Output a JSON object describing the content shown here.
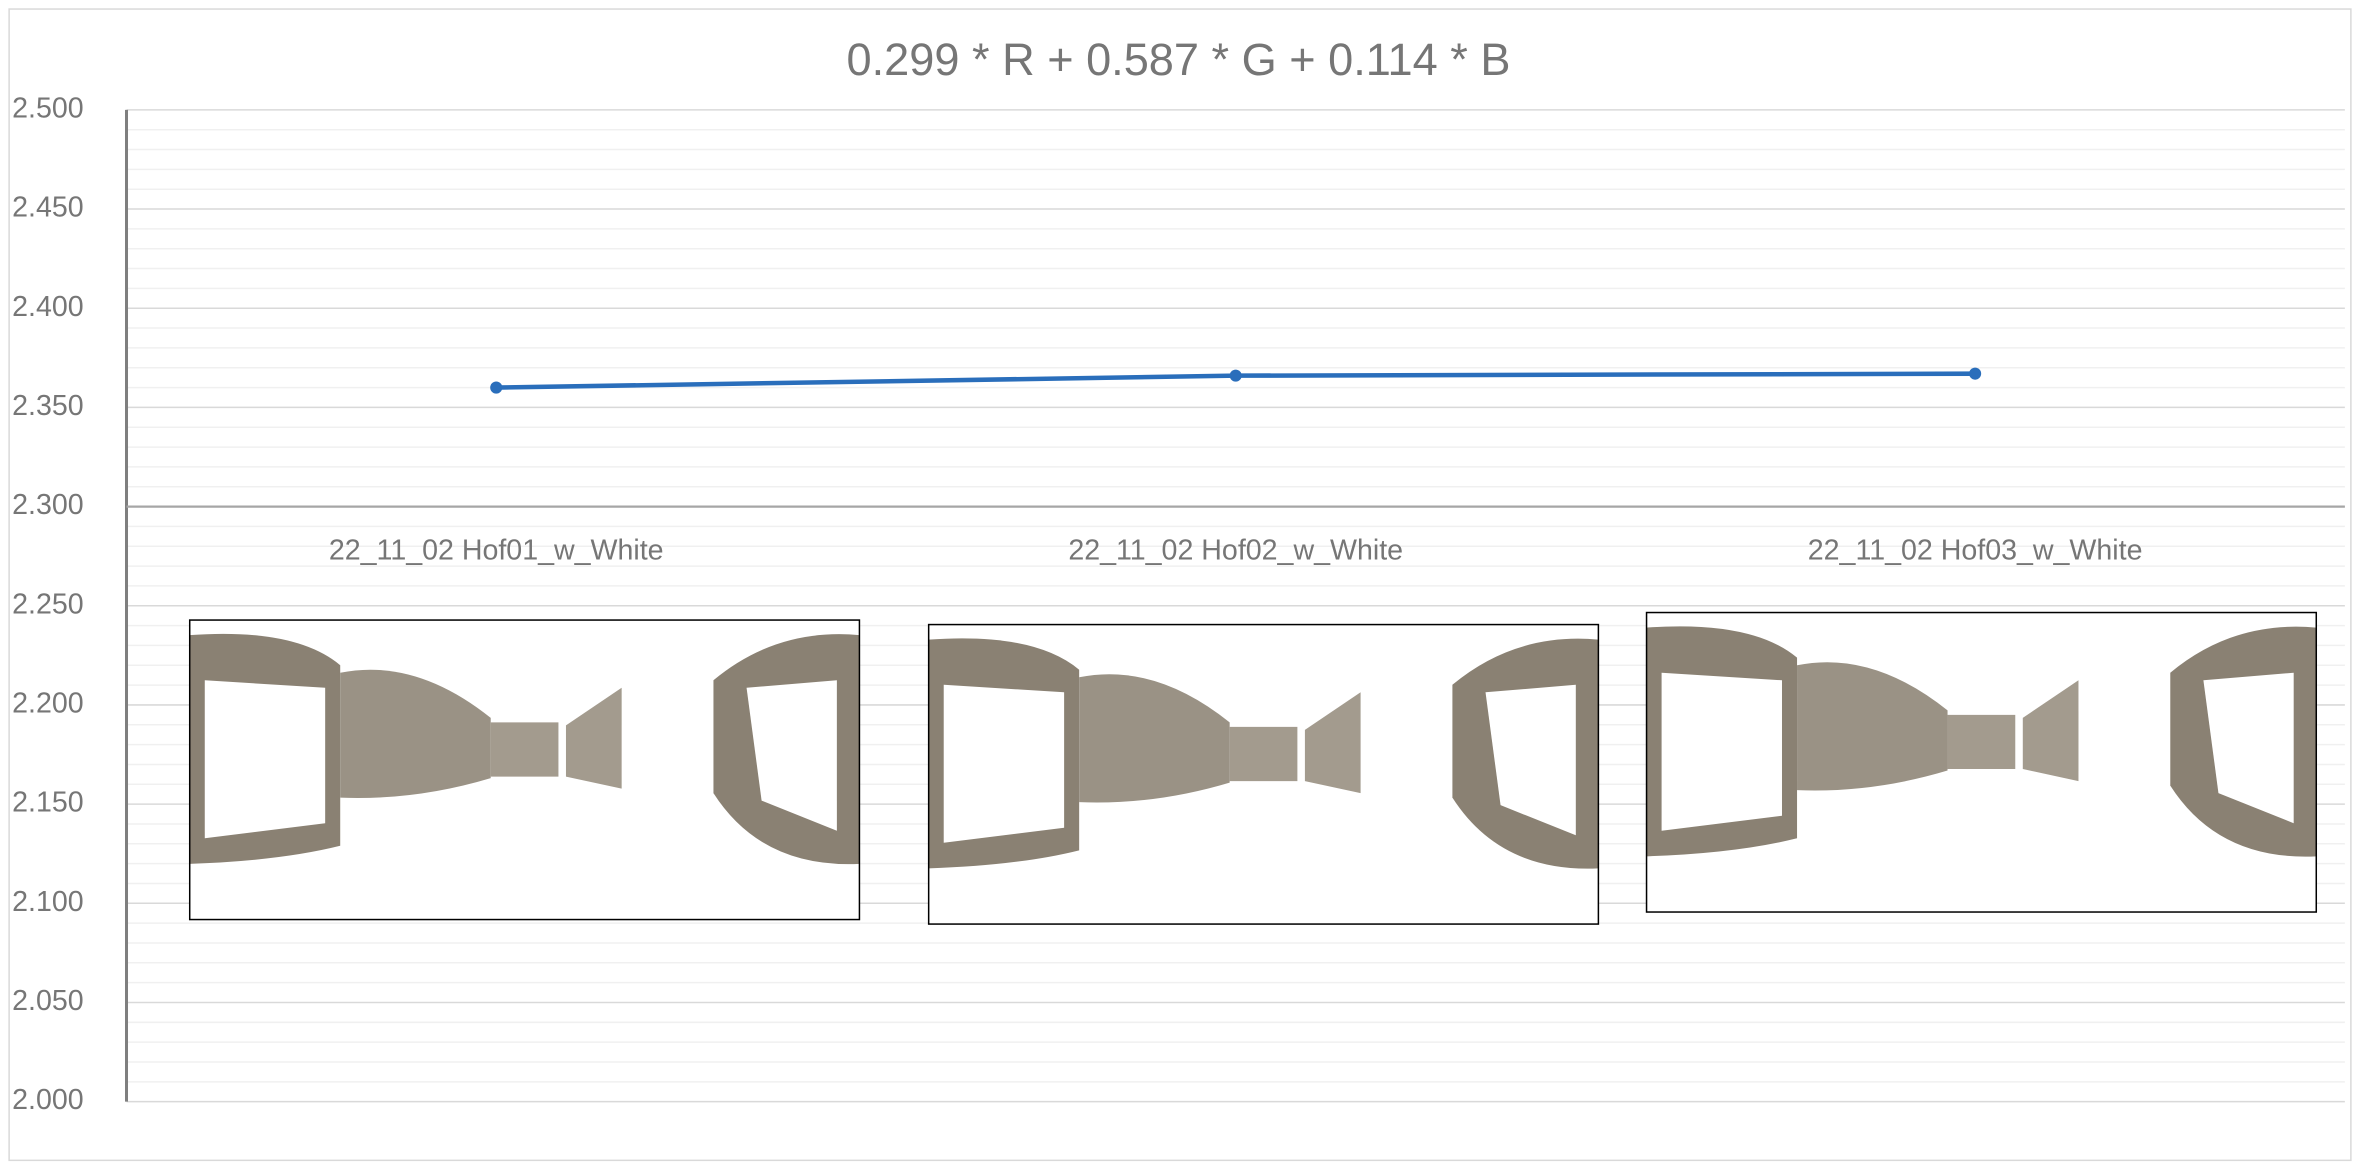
{
  "chart_data": {
    "type": "line",
    "title": "0.299 * R + 0.587 * G + 0.114 * B",
    "categories": [
      "22_11_02 Hof01_w_White",
      "22_11_02 Hof02_w_White",
      "22_11_02 Hof03_w_White"
    ],
    "series": [
      {
        "color": "#2a6ebb",
        "values": [
          2.36,
          2.366,
          2.367
        ]
      }
    ],
    "ylim": [
      2.0,
      2.5
    ],
    "yticks": [
      {
        "value": 2.0,
        "label": "2.000"
      },
      {
        "value": 2.05,
        "label": "2.050"
      },
      {
        "value": 2.1,
        "label": "2.100"
      },
      {
        "value": 2.15,
        "label": "2.150"
      },
      {
        "value": 2.2,
        "label": "2.200"
      },
      {
        "value": 2.25,
        "label": "2.250"
      },
      {
        "value": 2.3,
        "label": "2.300"
      },
      {
        "value": 2.35,
        "label": "2.350"
      },
      {
        "value": 2.4,
        "label": "2.400"
      },
      {
        "value": 2.45,
        "label": "2.450"
      },
      {
        "value": 2.5,
        "label": "2.500"
      }
    ],
    "x_axis_crosses": 2.3,
    "grid": true
  }
}
